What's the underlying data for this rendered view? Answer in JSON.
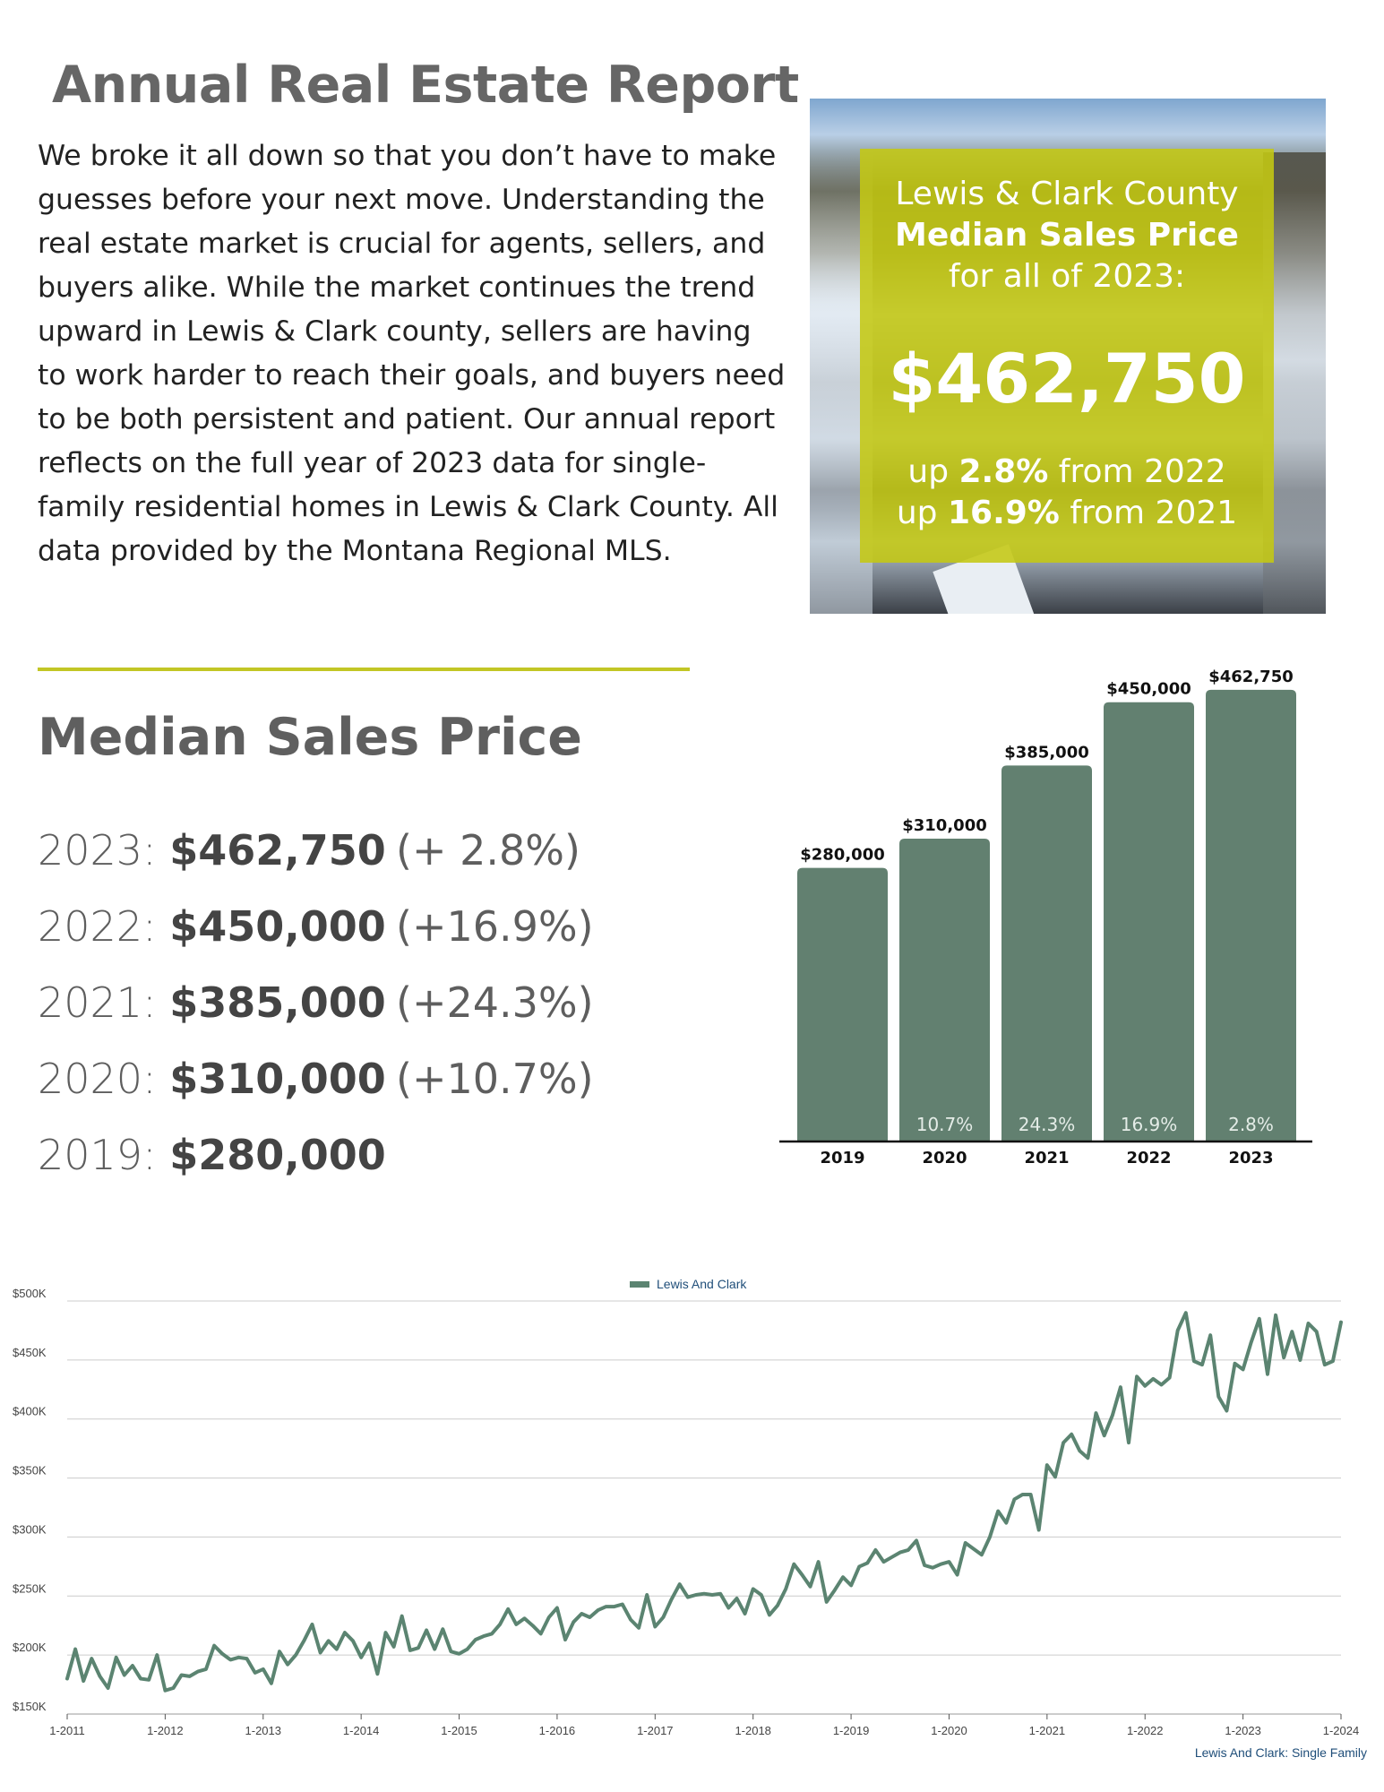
{
  "header": {
    "title": "Annual Real Estate Report",
    "intro": "We broke it all down so that you don’t have to make guesses before your next move. Understanding the real estate market is crucial for agents, sellers, and buyers alike. While the market continues the trend upward in Lewis & Clark county, sellers are having to work harder to reach their goals, and buyers need to be both persistent and patient. Our annual report reflects on the full year of 2023 data for single-family residential homes in Lewis & Clark County. All data provided by the Montana Regional MLS."
  },
  "hero": {
    "line1": "Lewis & Clark County",
    "line2": "Median Sales Price",
    "line3": "for all of 2023:",
    "price": "$462,750",
    "up1_prefix": "up ",
    "up1_value": "2.8%",
    "up1_suffix": " from 2022",
    "up2_prefix": "up ",
    "up2_value": "16.9%",
    "up2_suffix": " from 2021",
    "accent": "#c4c812"
  },
  "median": {
    "title": "Median Sales Price",
    "rows": [
      {
        "year": "2023:",
        "value": "$462,750",
        "change": "(+ 2.8%)"
      },
      {
        "year": "2022:",
        "value": "$450,000",
        "change": "(+16.9%)"
      },
      {
        "year": "2021:",
        "value": "$385,000",
        "change": "(+24.3%)"
      },
      {
        "year": "2020:",
        "value": "$310,000",
        "change": "(+10.7%)"
      },
      {
        "year": "2019:",
        "value": "$280,000",
        "change": ""
      }
    ]
  },
  "chart_data": [
    {
      "type": "bar",
      "categories": [
        "2019",
        "2020",
        "2021",
        "2022",
        "2023"
      ],
      "values": [
        280000,
        310000,
        385000,
        450000,
        462750
      ],
      "value_labels": [
        "$280,000",
        "$310,000",
        "$385,000",
        "$450,000",
        "$462,750"
      ],
      "change_labels": [
        "",
        "10.7%",
        "24.3%",
        "16.9%",
        "2.8%"
      ],
      "ylim": [
        0,
        470000
      ],
      "bar_color": "#628070"
    },
    {
      "type": "line",
      "legend": "Lewis And Clark",
      "source_label": "Lewis And Clark: Single Family",
      "yticks": [
        "$150K",
        "$200K",
        "$250K",
        "$300K",
        "$350K",
        "$400K",
        "$450K",
        "$500K"
      ],
      "xticks": [
        "1-2011",
        "1-2012",
        "1-2013",
        "1-2014",
        "1-2015",
        "1-2016",
        "1-2017",
        "1-2018",
        "1-2019",
        "1-2020",
        "1-2021",
        "1-2022",
        "1-2023",
        "1-2024"
      ],
      "ylim": [
        150000,
        500000
      ],
      "x_start": "2011-01",
      "x_end": "2024-01",
      "line_color": "#5b8471",
      "series": [
        {
          "name": "Lewis And Clark",
          "values": [
            180000,
            205000,
            178000,
            197000,
            182000,
            172000,
            198000,
            183000,
            191000,
            180000,
            179000,
            200000,
            170000,
            172000,
            183000,
            182000,
            186000,
            188000,
            208000,
            201000,
            196000,
            198000,
            197000,
            185000,
            188000,
            176000,
            203000,
            192000,
            200000,
            212000,
            226000,
            202000,
            212000,
            205000,
            219000,
            212000,
            198000,
            210000,
            184000,
            219000,
            207000,
            233000,
            204000,
            206000,
            221000,
            205000,
            222000,
            203000,
            201000,
            205000,
            213000,
            216000,
            218000,
            226000,
            239000,
            226000,
            231000,
            225000,
            218000,
            232000,
            240000,
            213000,
            228000,
            235000,
            232000,
            238000,
            241000,
            241000,
            243000,
            230000,
            223000,
            251000,
            224000,
            232000,
            247000,
            260000,
            249000,
            251000,
            252000,
            251000,
            252000,
            240000,
            248000,
            235000,
            256000,
            251000,
            234000,
            242000,
            256000,
            277000,
            268000,
            258000,
            279000,
            245000,
            255000,
            266000,
            259000,
            275000,
            278000,
            289000,
            279000,
            283000,
            287000,
            289000,
            297000,
            276000,
            274000,
            277000,
            279000,
            268000,
            295000,
            290000,
            285000,
            300000,
            322000,
            312000,
            332000,
            336000,
            336000,
            306000,
            361000,
            351000,
            380000,
            387000,
            373000,
            367000,
            405000,
            386000,
            403000,
            427000,
            380000,
            436000,
            428000,
            434000,
            429000,
            435000,
            475000,
            490000,
            449000,
            446000,
            471000,
            419000,
            407000,
            447000,
            442000,
            465000,
            485000,
            438000,
            488000,
            452000,
            474000,
            450000,
            481000,
            474000,
            446000,
            449000,
            482000
          ]
        }
      ]
    }
  ]
}
